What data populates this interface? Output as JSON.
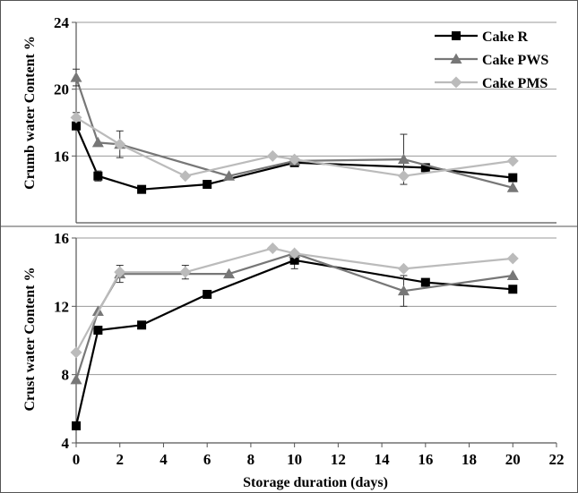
{
  "chart_data": [
    {
      "type": "line",
      "ylabel": "Crumb water Content %",
      "xlim": [
        0,
        22
      ],
      "ylim": [
        12,
        24
      ],
      "yticks": [
        16,
        20,
        24
      ],
      "grid": "horizontal",
      "legend_position": "top-right",
      "series": [
        {
          "name": "Cake R",
          "marker": "square",
          "color": "#000000",
          "x": [
            0,
            1,
            3,
            6,
            10,
            16,
            20
          ],
          "y": [
            17.8,
            14.8,
            14.0,
            14.3,
            15.6,
            15.3,
            14.7
          ],
          "err_lo": [
            0,
            0.3,
            0.2,
            0,
            0,
            0,
            0
          ],
          "err_hi": [
            0.8,
            0.3,
            0.2,
            0,
            0,
            0,
            0
          ]
        },
        {
          "name": "Cake PWS",
          "marker": "triangle",
          "color": "#777777",
          "x": [
            0,
            1,
            2,
            7,
            10,
            15,
            20
          ],
          "y": [
            20.7,
            16.8,
            16.7,
            14.8,
            15.7,
            15.8,
            14.1
          ],
          "err_lo": [
            0.5,
            0,
            0.8,
            0,
            0,
            1.5,
            0
          ],
          "err_hi": [
            0.5,
            0,
            0.8,
            0,
            0,
            1.5,
            0
          ]
        },
        {
          "name": "Cake PMS",
          "marker": "diamond",
          "color": "#bbbbbb",
          "x": [
            0,
            2,
            5,
            9,
            10,
            15,
            20
          ],
          "y": [
            18.3,
            16.7,
            14.8,
            16.0,
            15.8,
            14.8,
            15.7
          ],
          "err_lo": [
            0,
            0,
            0,
            0,
            0,
            0,
            0
          ],
          "err_hi": [
            0,
            0,
            0,
            0,
            0,
            0,
            0
          ]
        }
      ]
    },
    {
      "type": "line",
      "ylabel": "Crust water Content %",
      "xlabel": "Storage duration (days)",
      "xlim": [
        0,
        22
      ],
      "xticks": [
        0,
        2,
        4,
        6,
        8,
        10,
        12,
        14,
        16,
        18,
        20,
        22
      ],
      "ylim": [
        4,
        16
      ],
      "yticks": [
        4,
        8,
        12,
        16
      ],
      "grid": "horizontal",
      "series": [
        {
          "name": "Cake R",
          "marker": "square",
          "color": "#000000",
          "x": [
            0,
            1,
            3,
            6,
            10,
            16,
            20
          ],
          "y": [
            5.0,
            10.6,
            10.9,
            12.7,
            14.7,
            13.4,
            13.0
          ],
          "err_lo": [
            0,
            0,
            0,
            0,
            0.5,
            0,
            0
          ],
          "err_hi": [
            0,
            0,
            0,
            0,
            0.5,
            0,
            0
          ]
        },
        {
          "name": "Cake PWS",
          "marker": "triangle",
          "color": "#777777",
          "x": [
            0,
            1,
            2,
            7,
            10,
            15,
            20
          ],
          "y": [
            7.7,
            11.7,
            13.9,
            13.9,
            15.1,
            12.9,
            13.8
          ],
          "err_lo": [
            0,
            0,
            0.5,
            0,
            0,
            0.9,
            0
          ],
          "err_hi": [
            0,
            0,
            0.5,
            0,
            0,
            0.9,
            0
          ]
        },
        {
          "name": "Cake PMS",
          "marker": "diamond",
          "color": "#bbbbbb",
          "x": [
            0,
            2,
            5,
            9,
            10,
            15,
            20
          ],
          "y": [
            9.3,
            14.0,
            14.0,
            15.4,
            15.1,
            14.2,
            14.8
          ],
          "err_lo": [
            0,
            0,
            0.4,
            0,
            0,
            0,
            0
          ],
          "err_hi": [
            0,
            0,
            0.4,
            0,
            0,
            0,
            0
          ]
        }
      ]
    }
  ]
}
